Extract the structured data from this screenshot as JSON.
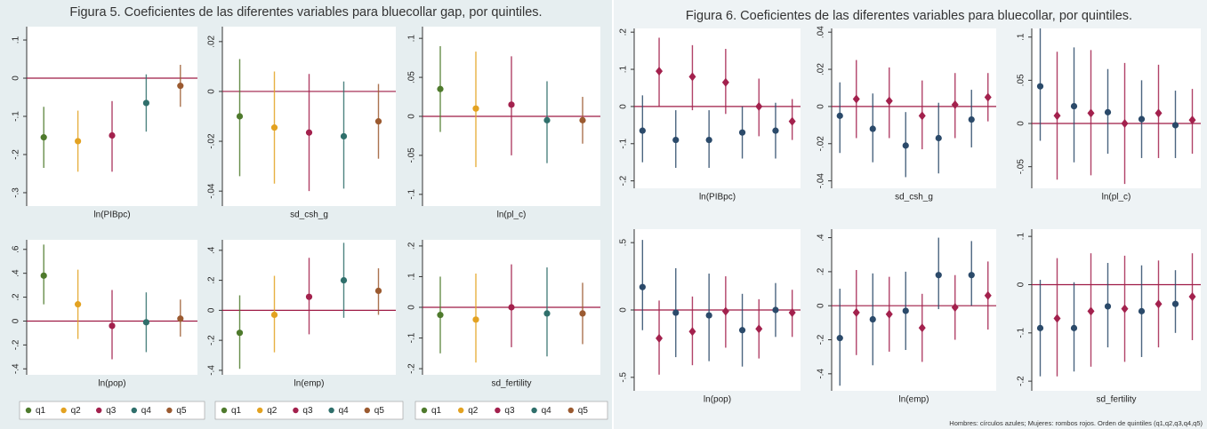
{
  "figures": [
    {
      "title": "Figura 5. Coeficientes de las diferentes variables para bluecollar gap, por quintiles."
    },
    {
      "title": "Figura 6. Coeficientes de las diferentes variables para bluecollar, por quintiles.",
      "note": "Hombres: círculos azules; Mujeres: rombos rojos. Orden de quintiles (q1,q2,q3,q4,q5)"
    }
  ],
  "chart_data": [
    {
      "type": "errorbar",
      "xlabel": "ln(PIBpc)",
      "ylim": [
        -0.335,
        0.135
      ],
      "yticks": [
        {
          "value": 0.1,
          "label": ".1"
        },
        0,
        {
          "value": -0.1,
          "label": "-.1"
        },
        {
          "value": -0.2,
          "label": "-.2"
        },
        {
          "value": -0.3,
          "label": "-.3"
        }
      ],
      "hline": 0,
      "legend": false,
      "series": [
        {
          "name": "q1",
          "color": "#4e7a2c",
          "values": [
            -0.155
          ],
          "lower": [
            -0.235
          ],
          "upper": [
            -0.075
          ]
        },
        {
          "name": "q2",
          "color": "#e3a221",
          "values": [
            -0.165
          ],
          "lower": [
            -0.245
          ],
          "upper": [
            -0.085
          ]
        },
        {
          "name": "q3",
          "color": "#a3214d",
          "values": [
            -0.15
          ],
          "lower": [
            -0.245
          ],
          "upper": [
            -0.06
          ]
        },
        {
          "name": "q4",
          "color": "#2f6f6b",
          "values": [
            -0.065
          ],
          "lower": [
            -0.14
          ],
          "upper": [
            0.01
          ]
        },
        {
          "name": "q5",
          "color": "#9b5a30",
          "values": [
            -0.02
          ],
          "lower": [
            -0.075
          ],
          "upper": [
            0.035
          ]
        }
      ]
    },
    {
      "type": "errorbar",
      "xlabel": "sd_csh_g",
      "ylim": [
        -0.046,
        0.026
      ],
      "yticks": [
        {
          "value": 0.02,
          "label": ".02"
        },
        0,
        {
          "value": -0.02,
          "label": "-.02"
        },
        {
          "value": -0.04,
          "label": "-.04"
        }
      ],
      "hline": 0,
      "legend": false,
      "series": [
        {
          "name": "q1",
          "color": "#4e7a2c",
          "values": [
            -0.01
          ],
          "lower": [
            -0.034
          ],
          "upper": [
            0.013
          ]
        },
        {
          "name": "q2",
          "color": "#e3a221",
          "values": [
            -0.0145
          ],
          "lower": [
            -0.037
          ],
          "upper": [
            0.008
          ]
        },
        {
          "name": "q3",
          "color": "#a3214d",
          "values": [
            -0.0165
          ],
          "lower": [
            -0.04
          ],
          "upper": [
            0.007
          ]
        },
        {
          "name": "q4",
          "color": "#2f6f6b",
          "values": [
            -0.018
          ],
          "lower": [
            -0.039
          ],
          "upper": [
            0.004
          ]
        },
        {
          "name": "q5",
          "color": "#9b5a30",
          "values": [
            -0.012
          ],
          "lower": [
            -0.027
          ],
          "upper": [
            0.003
          ]
        }
      ]
    },
    {
      "type": "errorbar",
      "xlabel": "ln(pl_c)",
      "ylim": [
        -0.115,
        0.115
      ],
      "yticks": [
        {
          "value": 0.1,
          "label": ".1"
        },
        {
          "value": 0.05,
          "label": ".05"
        },
        0,
        {
          "value": -0.05,
          "label": "-.05"
        },
        {
          "value": -0.1,
          "label": "-.1"
        }
      ],
      "hline": 0,
      "legend": false,
      "series": [
        {
          "name": "q1",
          "color": "#4e7a2c",
          "values": [
            0.035
          ],
          "lower": [
            -0.02
          ],
          "upper": [
            0.09
          ]
        },
        {
          "name": "q2",
          "color": "#e3a221",
          "values": [
            0.01
          ],
          "lower": [
            -0.065
          ],
          "upper": [
            0.083
          ]
        },
        {
          "name": "q3",
          "color": "#a3214d",
          "values": [
            0.015
          ],
          "lower": [
            -0.05
          ],
          "upper": [
            0.077
          ]
        },
        {
          "name": "q4",
          "color": "#2f6f6b",
          "values": [
            -0.005
          ],
          "lower": [
            -0.06
          ],
          "upper": [
            0.045
          ]
        },
        {
          "name": "q5",
          "color": "#9b5a30",
          "values": [
            -0.005
          ],
          "lower": [
            -0.035
          ],
          "upper": [
            0.025
          ]
        }
      ]
    },
    {
      "type": "errorbar",
      "xlabel": "ln(pop)",
      "ylim": [
        -0.45,
        0.68
      ],
      "yticks": [
        {
          "value": 0.6,
          "label": ".6"
        },
        {
          "value": 0.4,
          "label": ".4"
        },
        {
          "value": 0.2,
          "label": ".2"
        },
        0,
        {
          "value": -0.2,
          "label": "-.2"
        },
        {
          "value": -0.4,
          "label": "-.4"
        }
      ],
      "hline": 0,
      "legend": true,
      "series": [
        {
          "name": "q1",
          "color": "#4e7a2c",
          "values": [
            0.38
          ],
          "lower": [
            0.14
          ],
          "upper": [
            0.64
          ]
        },
        {
          "name": "q2",
          "color": "#e3a221",
          "values": [
            0.14
          ],
          "lower": [
            -0.15
          ],
          "upper": [
            0.43
          ]
        },
        {
          "name": "q3",
          "color": "#a3214d",
          "values": [
            -0.04
          ],
          "lower": [
            -0.32
          ],
          "upper": [
            0.26
          ]
        },
        {
          "name": "q4",
          "color": "#2f6f6b",
          "values": [
            -0.01
          ],
          "lower": [
            -0.26
          ],
          "upper": [
            0.24
          ]
        },
        {
          "name": "q5",
          "color": "#9b5a30",
          "values": [
            0.02
          ],
          "lower": [
            -0.13
          ],
          "upper": [
            0.18
          ]
        }
      ]
    },
    {
      "type": "errorbar",
      "xlabel": "ln(emp)",
      "ylim": [
        -0.43,
        0.47
      ],
      "yticks": [
        {
          "value": 0.4,
          "label": ".4"
        },
        {
          "value": 0.2,
          "label": ".2"
        },
        0,
        {
          "value": -0.2,
          "label": "-.2"
        },
        {
          "value": -0.4,
          "label": "-.4"
        }
      ],
      "hline": 0,
      "legend": true,
      "series": [
        {
          "name": "q1",
          "color": "#4e7a2c",
          "values": [
            -0.15
          ],
          "lower": [
            -0.39
          ],
          "upper": [
            0.1
          ]
        },
        {
          "name": "q2",
          "color": "#e3a221",
          "values": [
            -0.03
          ],
          "lower": [
            -0.28
          ],
          "upper": [
            0.23
          ]
        },
        {
          "name": "q3",
          "color": "#a3214d",
          "values": [
            0.09
          ],
          "lower": [
            -0.16
          ],
          "upper": [
            0.35
          ]
        },
        {
          "name": "q4",
          "color": "#2f6f6b",
          "values": [
            0.2
          ],
          "lower": [
            -0.05
          ],
          "upper": [
            0.45
          ]
        },
        {
          "name": "q5",
          "color": "#9b5a30",
          "values": [
            0.13
          ],
          "lower": [
            -0.03
          ],
          "upper": [
            0.28
          ]
        }
      ]
    },
    {
      "type": "errorbar",
      "xlabel": "sd_fertility",
      "ylim": [
        -0.22,
        0.22
      ],
      "yticks": [
        {
          "value": 0.2,
          "label": ".2"
        },
        {
          "value": 0.1,
          "label": ".1"
        },
        0,
        {
          "value": -0.1,
          "label": "-.1"
        },
        {
          "value": -0.2,
          "label": "-.2"
        }
      ],
      "hline": 0,
      "legend": true,
      "series": [
        {
          "name": "q1",
          "color": "#4e7a2c",
          "values": [
            -0.025
          ],
          "lower": [
            -0.15
          ],
          "upper": [
            0.1
          ]
        },
        {
          "name": "q2",
          "color": "#e3a221",
          "values": [
            -0.04
          ],
          "lower": [
            -0.18
          ],
          "upper": [
            0.11
          ]
        },
        {
          "name": "q3",
          "color": "#a3214d",
          "values": [
            0.0
          ],
          "lower": [
            -0.13
          ],
          "upper": [
            0.14
          ]
        },
        {
          "name": "q4",
          "color": "#2f6f6b",
          "values": [
            -0.02
          ],
          "lower": [
            -0.16
          ],
          "upper": [
            0.13
          ]
        },
        {
          "name": "q5",
          "color": "#9b5a30",
          "values": [
            -0.02
          ],
          "lower": [
            -0.12
          ],
          "upper": [
            0.08
          ]
        }
      ]
    },
    {
      "type": "errorbar",
      "xlabel": "ln(PIBpc)",
      "ylim": [
        -0.22,
        0.21
      ],
      "yticks": [
        {
          "value": 0.2,
          "label": ".2"
        },
        {
          "value": 0.1,
          "label": ".1"
        },
        0,
        {
          "value": -0.1,
          "label": "-.1"
        },
        {
          "value": -0.2,
          "label": "-.2"
        }
      ],
      "hline": 0,
      "legend": false,
      "series": [
        {
          "color": "#2b4a6a",
          "marker": "circle",
          "values": [
            -0.065,
            -0.09,
            -0.09,
            -0.07,
            -0.065
          ],
          "lower": [
            -0.15,
            -0.165,
            -0.165,
            -0.14,
            -0.14
          ],
          "upper": [
            0.03,
            -0.01,
            -0.01,
            0.0,
            0.01
          ]
        },
        {
          "color": "#a3214d",
          "marker": "diamond",
          "values": [
            0.095,
            0.08,
            0.065,
            0.0,
            -0.04
          ],
          "lower": [
            0.0,
            -0.01,
            -0.02,
            -0.08,
            -0.09
          ],
          "upper": [
            0.185,
            0.165,
            0.155,
            0.075,
            0.02
          ]
        }
      ]
    },
    {
      "type": "errorbar",
      "xlabel": "sd_csh_g",
      "ylim": [
        -0.044,
        0.042
      ],
      "yticks": [
        {
          "value": 0.04,
          "label": ".04"
        },
        {
          "value": 0.02,
          "label": ".02"
        },
        0,
        {
          "value": -0.02,
          "label": "-.02"
        },
        {
          "value": -0.04,
          "label": "-.04"
        }
      ],
      "hline": 0,
      "legend": false,
      "series": [
        {
          "color": "#2b4a6a",
          "marker": "circle",
          "values": [
            -0.005,
            -0.012,
            -0.021,
            -0.017,
            -0.007
          ],
          "lower": [
            -0.025,
            -0.03,
            -0.038,
            -0.036,
            -0.022
          ],
          "upper": [
            0.013,
            0.007,
            -0.003,
            0.002,
            0.009
          ]
        },
        {
          "color": "#a3214d",
          "marker": "diamond",
          "values": [
            0.004,
            0.003,
            -0.005,
            0.001,
            0.005
          ],
          "lower": [
            -0.017,
            -0.017,
            -0.023,
            -0.017,
            -0.008
          ],
          "upper": [
            0.025,
            0.021,
            0.014,
            0.018,
            0.018
          ]
        }
      ]
    },
    {
      "type": "errorbar",
      "xlabel": "ln(pl_c)",
      "ylim": [
        -0.075,
        0.11
      ],
      "yticks": [
        {
          "value": 0.1,
          "label": ".1"
        },
        {
          "value": 0.05,
          "label": ".05"
        },
        0,
        {
          "value": -0.05,
          "label": "-.05"
        }
      ],
      "hline": 0,
      "legend": false,
      "series": [
        {
          "color": "#2b4a6a",
          "marker": "circle",
          "values": [
            0.043,
            0.02,
            0.013,
            0.005,
            -0.002
          ],
          "lower": [
            -0.02,
            -0.045,
            -0.035,
            -0.04,
            -0.04
          ],
          "upper": [
            0.11,
            0.088,
            0.063,
            0.05,
            0.038
          ]
        },
        {
          "color": "#a3214d",
          "marker": "diamond",
          "values": [
            0.009,
            0.012,
            0.0,
            0.012,
            0.004
          ],
          "lower": [
            -0.065,
            -0.06,
            -0.07,
            -0.04,
            -0.035
          ],
          "upper": [
            0.083,
            0.085,
            0.07,
            0.068,
            0.04
          ]
        }
      ]
    },
    {
      "type": "errorbar",
      "xlabel": "ln(pop)",
      "ylim": [
        -0.6,
        0.6
      ],
      "yticks": [
        {
          "value": 0.5,
          "label": ".5"
        },
        0,
        {
          "value": -0.5,
          "label": "-.5"
        }
      ],
      "hline": 0,
      "legend": false,
      "series": [
        {
          "color": "#2b4a6a",
          "marker": "circle",
          "values": [
            0.17,
            -0.02,
            -0.04,
            -0.15,
            0.0
          ],
          "lower": [
            -0.15,
            -0.35,
            -0.38,
            -0.42,
            -0.2
          ],
          "upper": [
            0.52,
            0.31,
            0.27,
            0.12,
            0.2
          ]
        },
        {
          "color": "#a3214d",
          "marker": "diamond",
          "values": [
            -0.21,
            -0.16,
            -0.01,
            -0.14,
            -0.02
          ],
          "lower": [
            -0.48,
            -0.41,
            -0.28,
            -0.36,
            -0.2
          ],
          "upper": [
            0.07,
            0.1,
            0.25,
            0.08,
            0.15
          ]
        }
      ]
    },
    {
      "type": "errorbar",
      "xlabel": "ln(emp)",
      "ylim": [
        -0.5,
        0.45
      ],
      "yticks": [
        {
          "value": 0.4,
          "label": ".4"
        },
        {
          "value": 0.2,
          "label": ".2"
        },
        0,
        {
          "value": -0.2,
          "label": "-.2"
        },
        {
          "value": -0.4,
          "label": "-.4"
        }
      ],
      "hline": 0,
      "legend": false,
      "series": [
        {
          "color": "#2b4a6a",
          "marker": "circle",
          "values": [
            -0.19,
            -0.08,
            -0.03,
            0.18,
            0.18
          ],
          "lower": [
            -0.47,
            -0.35,
            -0.26,
            -0.02,
            0.0
          ],
          "upper": [
            0.1,
            0.19,
            0.2,
            0.4,
            0.38
          ]
        },
        {
          "color": "#a3214d",
          "marker": "diamond",
          "values": [
            -0.04,
            -0.05,
            -0.13,
            -0.01,
            0.06
          ],
          "lower": [
            -0.29,
            -0.27,
            -0.33,
            -0.2,
            -0.14
          ],
          "upper": [
            0.21,
            0.17,
            0.07,
            0.18,
            0.26
          ]
        }
      ]
    },
    {
      "type": "errorbar",
      "xlabel": "sd_fertility",
      "ylim": [
        -0.22,
        0.115
      ],
      "yticks": [
        {
          "value": 0.1,
          "label": ".1"
        },
        0,
        {
          "value": -0.1,
          "label": "-.1"
        },
        {
          "value": -0.2,
          "label": "-.2"
        }
      ],
      "hline": 0,
      "legend": false,
      "series": [
        {
          "color": "#2b4a6a",
          "marker": "circle",
          "values": [
            -0.09,
            -0.09,
            -0.045,
            -0.055,
            -0.04
          ],
          "lower": [
            -0.19,
            -0.18,
            -0.13,
            -0.15,
            -0.1
          ],
          "upper": [
            0.01,
            0.005,
            0.045,
            0.04,
            0.03
          ]
        },
        {
          "color": "#a3214d",
          "marker": "diamond",
          "values": [
            -0.07,
            -0.055,
            -0.05,
            -0.04,
            -0.025
          ],
          "lower": [
            -0.19,
            -0.17,
            -0.16,
            -0.13,
            -0.115
          ],
          "upper": [
            0.055,
            0.065,
            0.06,
            0.05,
            0.065
          ]
        }
      ]
    }
  ]
}
